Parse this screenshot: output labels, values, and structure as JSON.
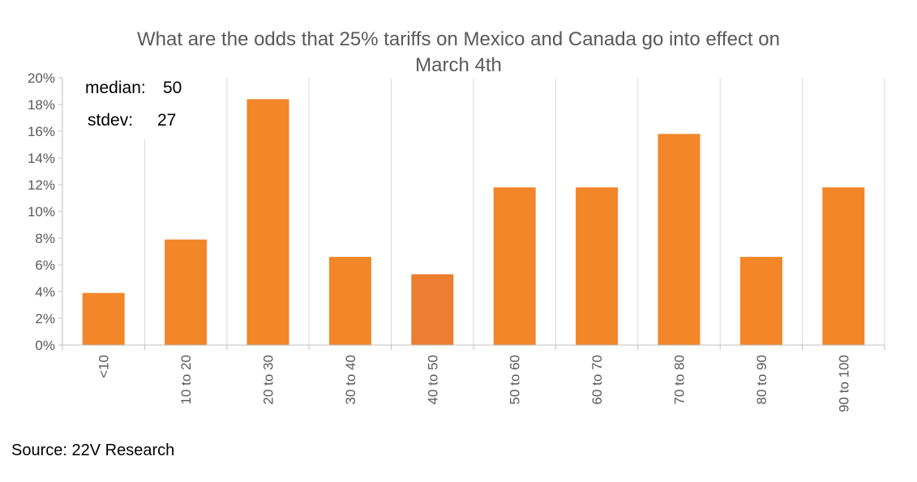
{
  "chart_data": {
    "type": "bar",
    "title_lines": [
      "What are the odds that 25% tariffs on Mexico and Canada go into effect on",
      "March 4th"
    ],
    "categories": [
      "<10",
      "10 to 20",
      "20 to 30",
      "30 to 40",
      "40 to 50",
      "50 to 60",
      "60 to 70",
      "70 to 80",
      "80 to 90",
      "90 to 100"
    ],
    "values": [
      3.9,
      7.9,
      18.4,
      6.6,
      5.3,
      11.8,
      11.8,
      15.8,
      6.6,
      11.8
    ],
    "y_unit": "%",
    "ylim": [
      0,
      20
    ],
    "ytick_labels": [
      "0%",
      "2%",
      "4%",
      "6%",
      "8%",
      "10%",
      "12%",
      "14%",
      "16%",
      "18%",
      "20%"
    ],
    "xlabel": "",
    "ylabel": "",
    "grid": "vertical",
    "legend": "none",
    "bar_color": "#F28629",
    "highlight_color": "#ED7D31",
    "highlight_category": "40 to 50",
    "annotations": {
      "median_label": "median:",
      "median_value": "50",
      "stdev_label": "stdev:",
      "stdev_value": "27"
    }
  },
  "source": "Source: 22V Research"
}
